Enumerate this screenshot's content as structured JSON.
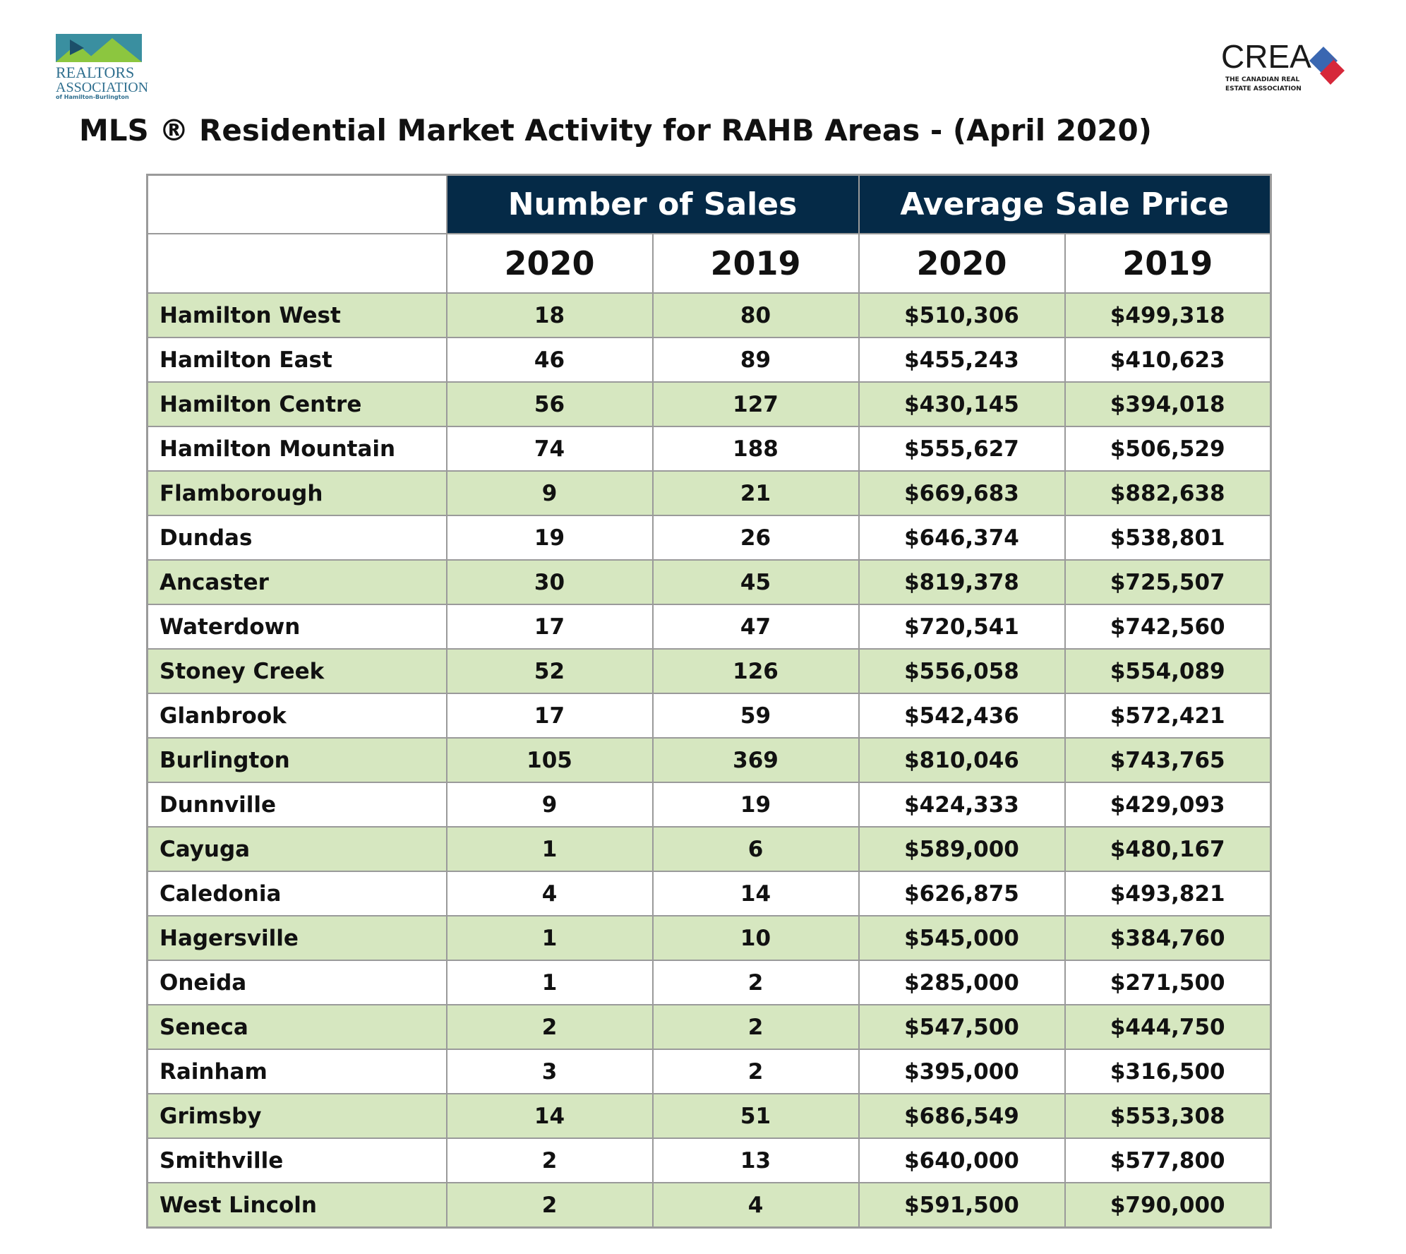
{
  "logos": {
    "left": [
      "REALTORS",
      "ASSOCIATION",
      "of Hamilton-Burlington"
    ],
    "right": {
      "name": "CREA",
      "tagline": [
        "THE CANADIAN REAL",
        "ESTATE ASSOCIATION"
      ]
    }
  },
  "title": "MLS ® Residential Market Activity for RAHB Areas - (April 2020)",
  "table": {
    "groups": [
      "Number of Sales",
      "Average Sale Price"
    ],
    "years": [
      "2020",
      "2019",
      "2020",
      "2019"
    ],
    "rows": [
      [
        "Hamilton West",
        "18",
        "80",
        "$510,306",
        "$499,318"
      ],
      [
        "Hamilton East",
        "46",
        "89",
        "$455,243",
        "$410,623"
      ],
      [
        "Hamilton Centre",
        "56",
        "127",
        "$430,145",
        "$394,018"
      ],
      [
        "Hamilton Mountain",
        "74",
        "188",
        "$555,627",
        "$506,529"
      ],
      [
        "Flamborough",
        "9",
        "21",
        "$669,683",
        "$882,638"
      ],
      [
        "Dundas",
        "19",
        "26",
        "$646,374",
        "$538,801"
      ],
      [
        "Ancaster",
        "30",
        "45",
        "$819,378",
        "$725,507"
      ],
      [
        "Waterdown",
        "17",
        "47",
        "$720,541",
        "$742,560"
      ],
      [
        "Stoney Creek",
        "52",
        "126",
        "$556,058",
        "$554,089"
      ],
      [
        "Glanbrook",
        "17",
        "59",
        "$542,436",
        "$572,421"
      ],
      [
        "Burlington",
        "105",
        "369",
        "$810,046",
        "$743,765"
      ],
      [
        "Dunnville",
        "9",
        "19",
        "$424,333",
        "$429,093"
      ],
      [
        "Cayuga",
        "1",
        "6",
        "$589,000",
        "$480,167"
      ],
      [
        "Caledonia",
        "4",
        "14",
        "$626,875",
        "$493,821"
      ],
      [
        "Hagersville",
        "1",
        "10",
        "$545,000",
        "$384,760"
      ],
      [
        "Oneida",
        "1",
        "2",
        "$285,000",
        "$271,500"
      ],
      [
        "Seneca",
        "2",
        "2",
        "$547,500",
        "$444,750"
      ],
      [
        "Rainham",
        "3",
        "2",
        "$395,000",
        "$316,500"
      ],
      [
        "Grimsby",
        "14",
        "51",
        "$686,549",
        "$553,308"
      ],
      [
        "Smithville",
        "2",
        "13",
        "$640,000",
        "$577,800"
      ],
      [
        "West Lincoln",
        "2",
        "4",
        "$591,500",
        "$790,000"
      ]
    ]
  }
}
